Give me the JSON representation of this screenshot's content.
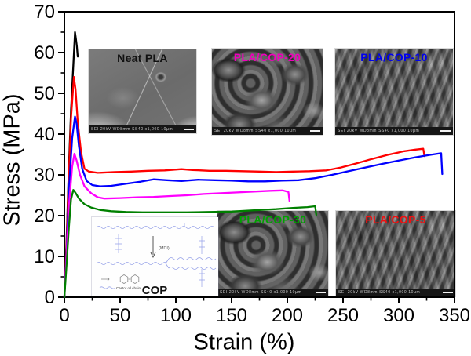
{
  "figure": {
    "background": "#ffffff",
    "frame_color": "#000000",
    "tick_label_color": "#000000"
  },
  "chart_data": {
    "type": "line",
    "title": "",
    "xlabel": "Strain (%)",
    "ylabel": "Stress (MPa)",
    "xlim": [
      0,
      350
    ],
    "ylim": [
      0,
      70
    ],
    "x_major_ticks": [
      0,
      50,
      100,
      150,
      200,
      250,
      300,
      350
    ],
    "x_minor_ticks": [
      25,
      75,
      125,
      175,
      225,
      275,
      325
    ],
    "y_major_ticks": [
      0,
      10,
      20,
      30,
      40,
      50,
      60,
      70
    ],
    "y_minor_ticks": [
      5,
      15,
      25,
      35,
      45,
      55,
      65
    ],
    "grid": false,
    "legend_position": "none",
    "series": [
      {
        "name": "Neat PLA",
        "color": "#000000",
        "points": [
          [
            0,
            0
          ],
          [
            2,
            14
          ],
          [
            4,
            32
          ],
          [
            6,
            46
          ],
          [
            8,
            57
          ],
          [
            9.5,
            65
          ],
          [
            10.3,
            63.5
          ],
          [
            11.2,
            61.5
          ],
          [
            12,
            59
          ]
        ]
      },
      {
        "name": "PLA/COP-5",
        "color": "#ff0000",
        "points": [
          [
            0,
            0
          ],
          [
            2,
            13
          ],
          [
            4,
            30
          ],
          [
            6,
            44
          ],
          [
            8.5,
            54
          ],
          [
            10,
            51
          ],
          [
            12,
            43
          ],
          [
            15,
            35.5
          ],
          [
            18,
            31.5
          ],
          [
            22,
            30.8
          ],
          [
            30,
            30.5
          ],
          [
            45,
            30.7
          ],
          [
            60,
            30.8
          ],
          [
            75,
            31
          ],
          [
            90,
            31.1
          ],
          [
            105,
            31.4
          ],
          [
            115,
            31.2
          ],
          [
            130,
            31
          ],
          [
            145,
            31
          ],
          [
            160,
            30.9
          ],
          [
            175,
            30.8
          ],
          [
            190,
            30.7
          ],
          [
            205,
            30.8
          ],
          [
            220,
            30.9
          ],
          [
            235,
            31.1
          ],
          [
            248,
            31.8
          ],
          [
            262,
            32.8
          ],
          [
            276,
            33.9
          ],
          [
            290,
            34.9
          ],
          [
            305,
            35.8
          ],
          [
            315,
            36.2
          ],
          [
            322,
            36.4
          ],
          [
            323,
            34.6
          ]
        ]
      },
      {
        "name": "PLA/COP-10",
        "color": "#0000ff",
        "points": [
          [
            0,
            0
          ],
          [
            2,
            11
          ],
          [
            4,
            26
          ],
          [
            7,
            39
          ],
          [
            9.5,
            44.3
          ],
          [
            11,
            42.5
          ],
          [
            13,
            37
          ],
          [
            16,
            31.5
          ],
          [
            20,
            28.5
          ],
          [
            25,
            27.5
          ],
          [
            32,
            27.2
          ],
          [
            42,
            27.3
          ],
          [
            55,
            27.8
          ],
          [
            68,
            28.3
          ],
          [
            80,
            28.9
          ],
          [
            92,
            28.7
          ],
          [
            105,
            28.5
          ],
          [
            120,
            28.8
          ],
          [
            135,
            28.7
          ],
          [
            150,
            28.6
          ],
          [
            165,
            28.4
          ],
          [
            180,
            28.4
          ],
          [
            195,
            28.6
          ],
          [
            210,
            28.7
          ],
          [
            225,
            29.2
          ],
          [
            240,
            30
          ],
          [
            255,
            30.9
          ],
          [
            270,
            31.8
          ],
          [
            285,
            32.7
          ],
          [
            300,
            33.5
          ],
          [
            315,
            34.3
          ],
          [
            328,
            34.9
          ],
          [
            338,
            35.3
          ],
          [
            339,
            30.2
          ]
        ]
      },
      {
        "name": "PLA/COP-20",
        "color": "#ff00ff",
        "points": [
          [
            0,
            0
          ],
          [
            2,
            10
          ],
          [
            4,
            22
          ],
          [
            7,
            32
          ],
          [
            9,
            35.2
          ],
          [
            11,
            33.5
          ],
          [
            14,
            30
          ],
          [
            18,
            27.2
          ],
          [
            24,
            25.5
          ],
          [
            30,
            24.5
          ],
          [
            36,
            24.2
          ],
          [
            50,
            24.3
          ],
          [
            65,
            24.5
          ],
          [
            80,
            24.6
          ],
          [
            95,
            24.8
          ],
          [
            110,
            25
          ],
          [
            125,
            25.3
          ],
          [
            140,
            25.5
          ],
          [
            155,
            25.7
          ],
          [
            170,
            25.9
          ],
          [
            185,
            26.1
          ],
          [
            196,
            26.2
          ],
          [
            201,
            25.8
          ],
          [
            202,
            23.6
          ]
        ]
      },
      {
        "name": "PLA/COP-30",
        "color": "#008000",
        "points": [
          [
            0,
            0
          ],
          [
            2,
            8
          ],
          [
            4,
            17
          ],
          [
            6,
            24
          ],
          [
            8,
            26.3
          ],
          [
            10,
            25.6
          ],
          [
            13,
            24.2
          ],
          [
            18,
            22.8
          ],
          [
            24,
            22
          ],
          [
            32,
            21.4
          ],
          [
            42,
            21.1
          ],
          [
            55,
            20.9
          ],
          [
            70,
            20.8
          ],
          [
            90,
            20.8
          ],
          [
            110,
            20.8
          ],
          [
            130,
            20.9
          ],
          [
            150,
            21
          ],
          [
            170,
            21.3
          ],
          [
            190,
            21.6
          ],
          [
            205,
            21.9
          ],
          [
            218,
            22.1
          ],
          [
            225,
            22.3
          ],
          [
            226,
            20.2
          ]
        ]
      }
    ]
  },
  "insets": {
    "neat_pla": {
      "label": "Neat PLA",
      "label_color": "#111111",
      "caption": "SEI 20kV WD8mm SS40 x1,000 10µm"
    },
    "pla_cop_20": {
      "label": "PLA/COP-20",
      "label_color": "#ee00bb",
      "caption": "SEI 20kV WD8mm SS40 x1,000 10µm"
    },
    "pla_cop_10": {
      "label": "PLA/COP-10",
      "label_color": "#0000ee",
      "caption": "SEI 20kV WD8mm SS40 x1,000 10µm"
    },
    "pla_cop_30": {
      "label": "PLA/COP-30",
      "label_color": "#00a000",
      "caption": "SEI 20kV WD8mm SS40 x1,000 10µm"
    },
    "pla_cop_5": {
      "label": "PLA/COP-5",
      "label_color": "#ee1111",
      "caption": "SEI 20kV WD8mm SS40 x1,000 10µm"
    },
    "cop": {
      "label": "COP",
      "reagent_label": "(MDI)",
      "legend_chain_label": "Castor oil chain"
    }
  }
}
